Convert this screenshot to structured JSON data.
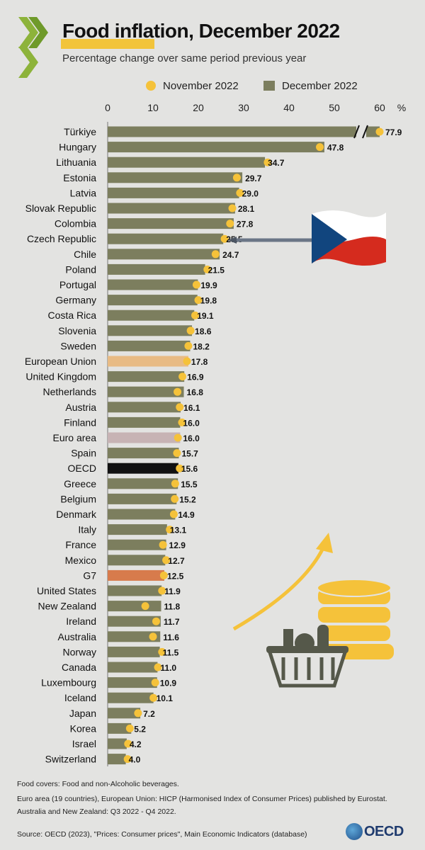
{
  "title": "Food inflation, December 2022",
  "subtitle": "Percentage change over same period previous year",
  "legend": {
    "november": "November 2022",
    "december": "December 2022"
  },
  "axis": {
    "unit": "%",
    "ticks": [
      "0",
      "10",
      "20",
      "30",
      "40",
      "50",
      "60"
    ]
  },
  "colors": {
    "bar": "#7c7e5e",
    "dot": "#f5c23a",
    "eu": "#e8bb84",
    "euro": "#c7b3b4",
    "oecd": "#111111",
    "g7": "#d77b4c"
  },
  "footer": {
    "line1": "Food covers: Food and non-Alcoholic beverages.",
    "line2": "Euro area (19 countries), European Union: HICP (Harmonised Index of Consumer Prices) published by Eurostat.",
    "line3": "Australia and New Zealand:  Q3 2022 - Q4 2022.",
    "source": "Source: OECD (2023), \"Prices: Consumer prices\", Main Economic Indicators (database)"
  },
  "brand": {
    "oecd": "OECD"
  },
  "icons": [
    "oecd-chevron-icon",
    "czech-flag-pin-icon",
    "rising-arrow-icon",
    "coin-stack-icon",
    "grocery-basket-icon",
    "oecd-globe-icon"
  ],
  "chart_data": {
    "type": "bar",
    "orientation": "horizontal",
    "xlim": [
      0,
      60
    ],
    "axis_break": {
      "value": 60,
      "label_value": 77.9
    },
    "categories": [
      "Türkiye",
      "Hungary",
      "Lithuania",
      "Estonia",
      "Latvia",
      "Slovak Republic",
      "Colombia",
      "Czech Republic",
      "Chile",
      "Poland",
      "Portugal",
      "Germany",
      "Costa Rica",
      "Slovenia",
      "Sweden",
      "European Union",
      "United Kingdom",
      "Netherlands",
      "Austria",
      "Finland",
      "Euro area",
      "Spain",
      "OECD",
      "Greece",
      "Belgium",
      "Denmark",
      "Italy",
      "France",
      "Mexico",
      "G7",
      "United States",
      "New Zealand",
      "Ireland",
      "Australia",
      "Norway",
      "Canada",
      "Luxembourg",
      "Iceland",
      "Japan",
      "Korea",
      "Israel",
      "Switzerland"
    ],
    "series": [
      {
        "name": "December 2022",
        "values": [
          77.9,
          47.8,
          34.7,
          29.7,
          29.0,
          28.1,
          27.8,
          25.5,
          24.7,
          21.5,
          19.9,
          19.8,
          19.1,
          18.6,
          18.2,
          17.8,
          16.9,
          16.8,
          16.1,
          16.0,
          16.0,
          15.7,
          15.6,
          15.5,
          15.2,
          14.9,
          13.1,
          12.9,
          12.7,
          12.5,
          11.9,
          11.8,
          11.7,
          11.6,
          11.5,
          11.0,
          10.9,
          10.1,
          7.2,
          5.2,
          4.2,
          4.0
        ]
      },
      {
        "name": "November 2022",
        "values": [
          84.9,
          46.8,
          35.3,
          28.5,
          29.2,
          27.5,
          27.0,
          25.8,
          23.8,
          22.0,
          19.6,
          20.0,
          19.3,
          18.3,
          17.8,
          17.5,
          16.5,
          15.4,
          15.9,
          16.4,
          15.5,
          15.3,
          15.9,
          14.9,
          14.8,
          14.6,
          13.7,
          12.2,
          12.9,
          12.4,
          12.0,
          8.3,
          10.7,
          10.0,
          12.0,
          11.1,
          10.5,
          10.1,
          6.7,
          4.9,
          4.5,
          4.4
        ]
      }
    ],
    "value_labels": [
      "77.9",
      "47.8",
      "34.7",
      "29.7",
      "29.0",
      "28.1",
      "27.8",
      "25.5",
      "24.7",
      "21.5",
      "19.9",
      "19.8",
      "19.1",
      "18.6",
      "18.2",
      "17.8",
      "16.9",
      "16.8",
      "16.1",
      "16.0",
      "16.0",
      "15.7",
      "15.6",
      "15.5",
      "15.2",
      "14.9",
      "13.1",
      "12.9",
      "12.7",
      "12.5",
      "11.9",
      "11.8",
      "11.7",
      "11.6",
      "11.5",
      "11.0",
      "10.9",
      "10.1",
      "7.2",
      "5.2",
      "4.2",
      "4.0"
    ],
    "highlight": {
      "European Union": "eu",
      "Euro area": "euro",
      "OECD": "oecd",
      "G7": "g7"
    }
  }
}
